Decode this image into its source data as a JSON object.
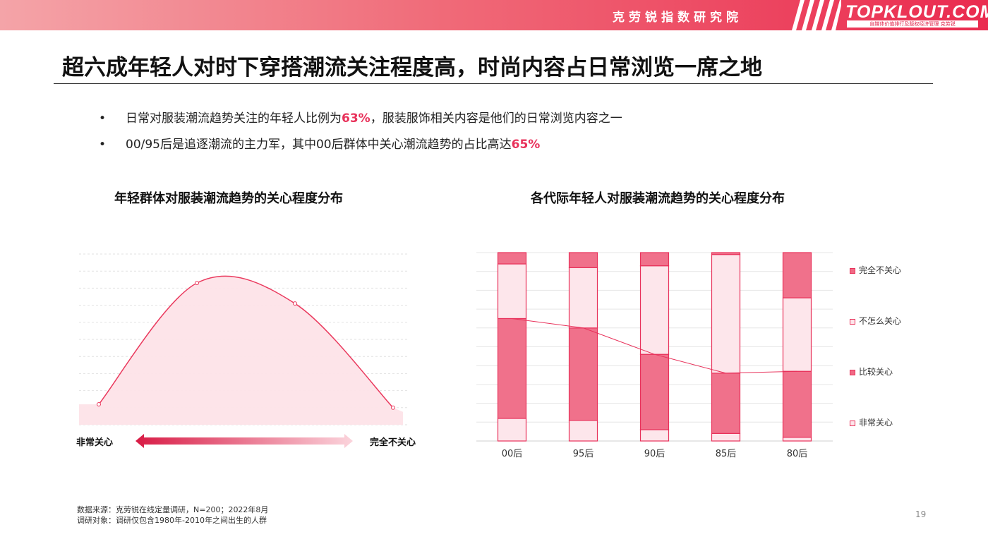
{
  "header": {
    "org_name": "克劳锐指数研究院",
    "logo_text": "TOPKLOUT.COM",
    "logo_subtext": "自媒体价值排行及版权经济管理 克劳锐"
  },
  "title": "超六成年轻人对时下穿搭潮流关注程度高，时尚内容占日常浏览一席之地",
  "bullets": [
    {
      "pre": "日常对服装潮流趋势关注的年轻人比例为",
      "highlight": "63%",
      "post": "，服装服饰相关内容是他们的日常浏览内容之一"
    },
    {
      "pre": "00/95后是追逐潮流的主力军，其中00后群体中关心潮流趋势的占比高达",
      "highlight": "65%",
      "post": ""
    }
  ],
  "left_chart": {
    "left_end_label": "非常关心",
    "right_end_label": "完全不关心"
  },
  "right_chart": {
    "legend": [
      "完全不关心",
      "不怎么关心",
      "比较关心",
      "非常关心"
    ]
  },
  "chart_data": [
    {
      "type": "area",
      "title": "年轻群体对服装潮流趋势的关心程度分布",
      "categories": [
        "非常关心",
        "比较关心",
        "不怎么关心",
        "完全不关心"
      ],
      "values": [
        12,
        83,
        71,
        10
      ],
      "ylim": [
        0,
        100
      ],
      "grid": true
    },
    {
      "type": "bar",
      "stacked": true,
      "title": "各代际年轻人对服装潮流趋势的关心程度分布",
      "categories": [
        "00后",
        "95后",
        "90后",
        "85后",
        "80后"
      ],
      "series": [
        {
          "name": "非常关心",
          "values": [
            12,
            11,
            6,
            4,
            2
          ]
        },
        {
          "name": "比较关心",
          "values": [
            53,
            49,
            40,
            32,
            35
          ]
        },
        {
          "name": "不怎么关心",
          "values": [
            29,
            32,
            47,
            63,
            39
          ]
        },
        {
          "name": "完全不关心",
          "values": [
            6,
            8,
            7,
            1,
            24
          ]
        }
      ],
      "line_series": {
        "values": [
          65,
          60,
          46,
          36,
          37
        ]
      },
      "ylim": [
        0,
        100
      ],
      "legend_position": "right",
      "grid": true
    }
  ],
  "footnotes": {
    "source": "数据来源：克劳锐在线定量调研，N=200；2022年8月",
    "subjects": "调研对象：调研仅包含1980年-2010年之间出生的人群"
  },
  "page_number": "19"
}
